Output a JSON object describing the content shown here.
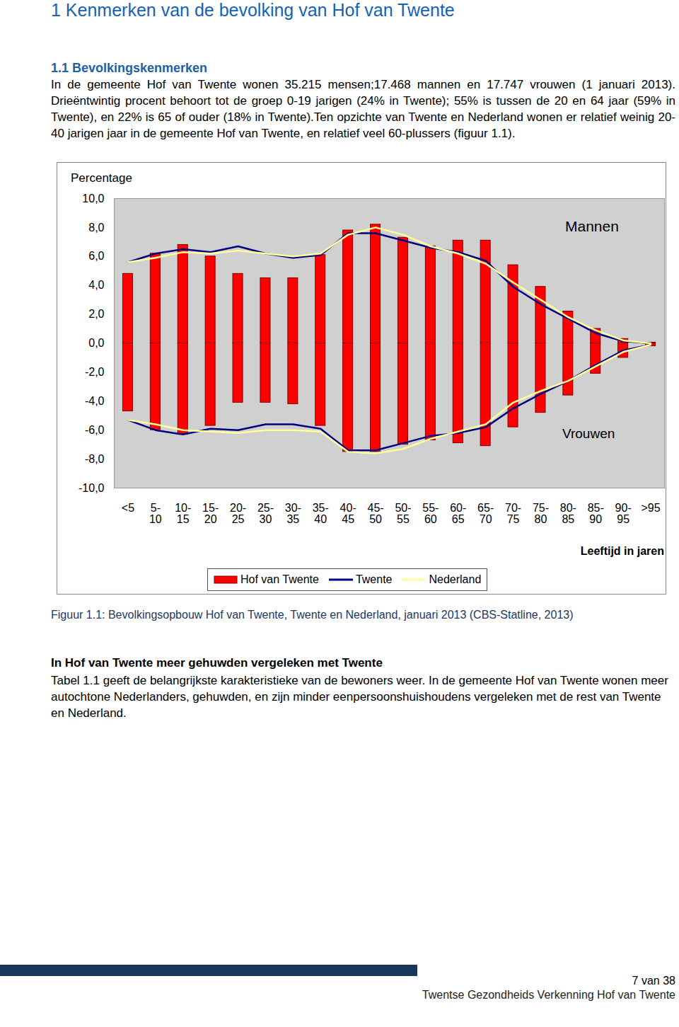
{
  "header": {
    "title": "1 Kenmerken van de bevolking van Hof van Twente",
    "section": "1.1 Bevolkingskenmerken"
  },
  "paragraphs": [
    "In de gemeente Hof van Twente wonen 35.215 mensen;17.468 mannen en 17.747 vrouwen (1 januari 2013). Drieëntwintig procent behoort tot de groep 0-19 jarigen (24% in Twente); 55% is tussen de 20 en 64 jaar (59% in Twente), en 22% is 65 of ouder (18% in Twente).Ten opzichte van Twente en Nederland wonen er relatief weinig 20-40 jarigen jaar in de gemeente Hof van Twente, en relatief veel 60-plussers (figuur 1.1)."
  ],
  "chart_data": {
    "type": "bar",
    "ylabel": "Percentage",
    "xlabel": "Leeftijd in jaren",
    "categories": [
      "<5",
      "5-10",
      "10-15",
      "15-20",
      "20-25",
      "25-30",
      "30-35",
      "35-40",
      "40-45",
      "45-50",
      "50-55",
      "55-60",
      "60-65",
      "65-70",
      "70-75",
      "75-80",
      "80-85",
      "85-90",
      "90-95",
      ">95"
    ],
    "group_labels": [
      "Mannen",
      "Vrouwen"
    ],
    "series": [
      {
        "name": "Hof van Twente",
        "type": "bar",
        "color": "#ff0000",
        "values": [
          [
            4.8,
            6.2,
            6.8,
            6.0,
            4.8,
            4.5,
            4.5,
            6.1,
            7.8,
            8.2,
            7.3,
            6.7,
            7.1,
            7.1,
            5.4,
            3.9,
            2.2,
            1.0,
            0.3,
            0.05
          ],
          [
            -4.7,
            -6.0,
            -6.3,
            -5.7,
            -4.1,
            -4.1,
            -4.2,
            -5.7,
            -7.5,
            -7.5,
            -7.0,
            -6.7,
            -6.9,
            -7.1,
            -5.8,
            -4.8,
            -3.6,
            -2.1,
            -1.0,
            -0.2
          ]
        ]
      },
      {
        "name": "Twente",
        "type": "line",
        "color": "#000080",
        "values": [
          [
            5.6,
            6.2,
            6.5,
            6.3,
            6.7,
            6.2,
            5.9,
            6.1,
            7.6,
            7.6,
            7.1,
            6.6,
            6.3,
            5.7,
            3.9,
            2.7,
            1.7,
            0.7,
            0.15,
            0.0
          ],
          [
            -5.3,
            -6.0,
            -6.3,
            -5.9,
            -6.0,
            -5.6,
            -5.6,
            -5.9,
            -7.4,
            -7.4,
            -6.9,
            -6.4,
            -6.2,
            -5.8,
            -4.5,
            -3.5,
            -2.6,
            -1.5,
            -0.5,
            -0.1
          ]
        ]
      },
      {
        "name": "Nederland",
        "type": "line",
        "color": "#ffff99",
        "values": [
          [
            5.6,
            5.9,
            6.3,
            6.2,
            6.4,
            6.2,
            6.0,
            6.2,
            7.5,
            8.0,
            7.5,
            6.7,
            6.2,
            5.5,
            4.2,
            3.0,
            1.8,
            0.9,
            0.2,
            0.0
          ],
          [
            -5.3,
            -5.6,
            -6.0,
            -6.1,
            -6.2,
            -6.0,
            -6.0,
            -6.1,
            -7.5,
            -7.6,
            -7.3,
            -6.6,
            -6.1,
            -5.6,
            -4.1,
            -3.3,
            -2.6,
            -1.6,
            -0.6,
            -0.1
          ]
        ]
      }
    ],
    "ylim": [
      -10,
      10
    ],
    "yticks": [
      {
        "value": 10,
        "label": "10,0"
      },
      {
        "value": 8,
        "label": "8,0"
      },
      {
        "value": 6,
        "label": "6,0"
      },
      {
        "value": 4,
        "label": "4,0"
      },
      {
        "value": 2,
        "label": "2,0"
      },
      {
        "value": 0,
        "label": "0,0"
      },
      {
        "value": -2,
        "label": "-2,0"
      },
      {
        "value": -4,
        "label": "-4,0"
      },
      {
        "value": -6,
        "label": "-6,0"
      },
      {
        "value": -8,
        "label": "-8,0"
      },
      {
        "value": -10,
        "label": "-10,0"
      }
    ],
    "grid": false,
    "legend": "bottom"
  },
  "caption": "Figuur 1.1: Bevolkingsopbouw Hof van Twente, Twente en Nederland, januari 2013 (CBS-Statline, 2013)",
  "subheading": "In Hof van Twente meer gehuwden vergeleken met Twente",
  "paragraphs_after": [
    "Tabel 1.1 geeft de belangrijkste karakteristieke van de bewoners weer. In de gemeente Hof van Twente wonen meer autochtone Nederlanders, gehuwden, en zijn minder eenpersoonshuishoudens vergeleken met de rest van Twente en Nederland."
  ],
  "footer": {
    "page": "7 van 38",
    "text": "Twentse Gezondheids Verkenning Hof van Twente"
  }
}
